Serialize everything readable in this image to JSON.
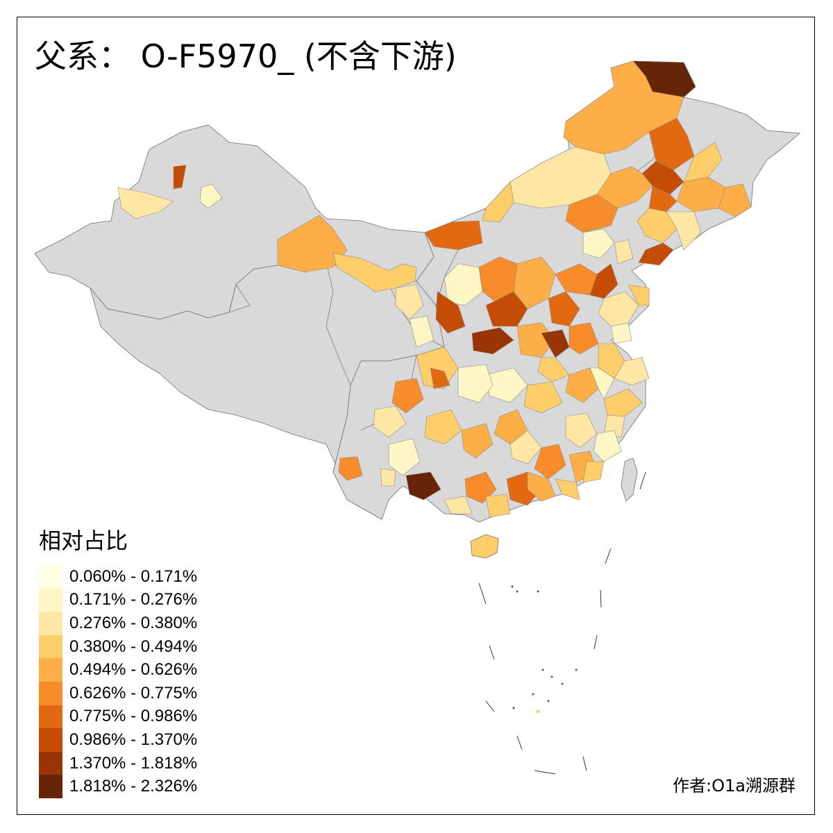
{
  "title": "父系： O-F5970_ (不含下游)",
  "legend": {
    "title": "相对占比",
    "items": [
      {
        "label": "0.060% - 0.171%",
        "color": "#FFFFE5"
      },
      {
        "label": "0.171% - 0.276%",
        "color": "#FFF6C6"
      },
      {
        "label": "0.276% - 0.380%",
        "color": "#FEE6A4"
      },
      {
        "label": "0.380% - 0.494%",
        "color": "#FECE6B"
      },
      {
        "label": "0.494% - 0.626%",
        "color": "#FDAE46"
      },
      {
        "label": "0.626% - 0.775%",
        "color": "#F88C2A"
      },
      {
        "label": "0.775% - 0.986%",
        "color": "#E36910"
      },
      {
        "label": "0.986% - 1.370%",
        "color": "#C44C04"
      },
      {
        "label": "1.370% - 1.818%",
        "color": "#993404"
      },
      {
        "label": "1.818% - 2.326%",
        "color": "#662506"
      }
    ]
  },
  "no_data_color": "#D9D9D9",
  "credit": "作者:O1a溯源群"
}
